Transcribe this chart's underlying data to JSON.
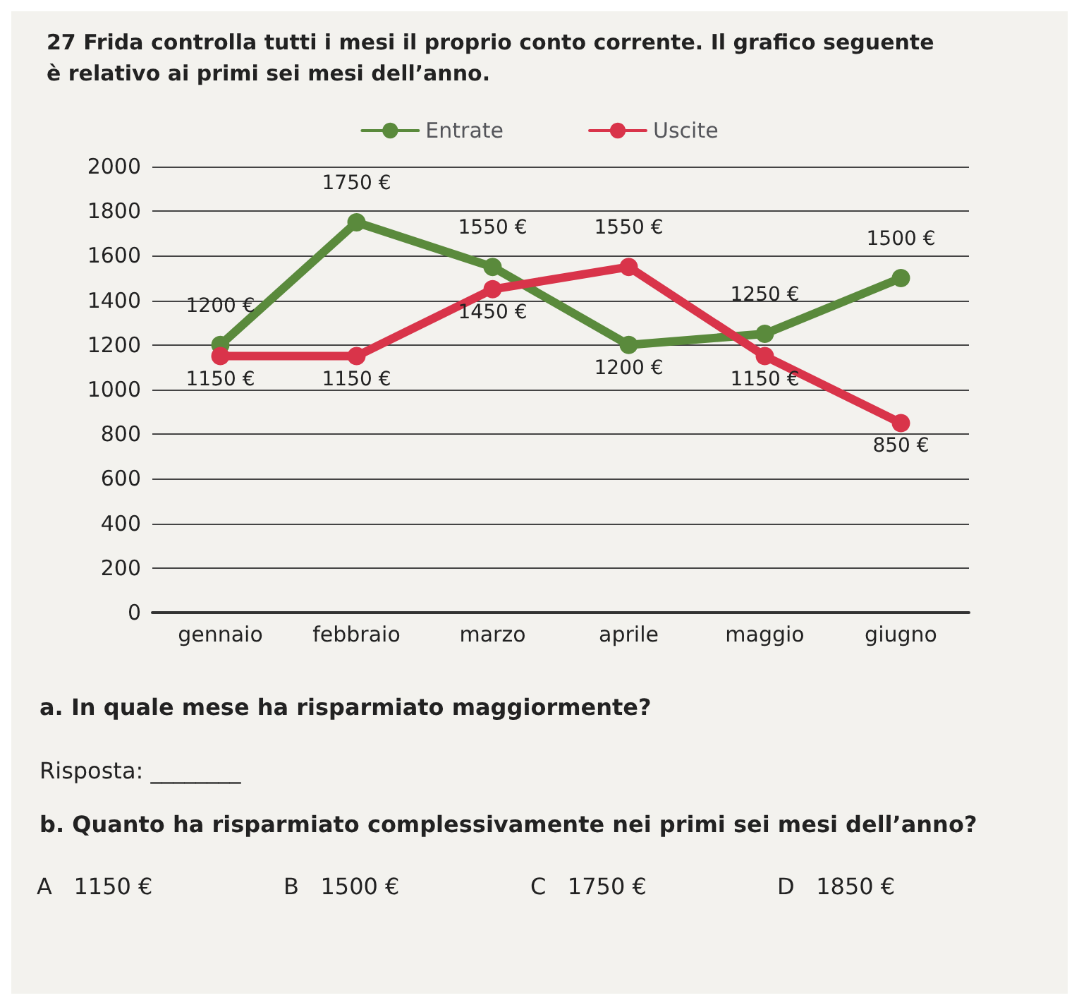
{
  "chart_data": {
    "type": "line",
    "title": "27 Frida controlla tutti i mesi il proprio conto corrente. Il grafico seguente è relativo ai primi sei mesi dell’anno.",
    "categories": [
      "gennaio",
      "febbraio",
      "marzo",
      "aprile",
      "maggio",
      "giugno"
    ],
    "series": [
      {
        "name": "Entrate",
        "color": "#5a8a3c",
        "values": [
          1200,
          1750,
          1550,
          1200,
          1250,
          1500
        ],
        "value_labels": [
          "1200 €",
          "1750 €",
          "1550 €",
          "1200 €",
          "1250 €",
          "1500 €"
        ]
      },
      {
        "name": "Uscite",
        "color": "#d9344a",
        "values": [
          1150,
          1150,
          1450,
          1550,
          1150,
          850
        ],
        "value_labels": [
          "1150 €",
          "1150 €",
          "1450 €",
          "1550 €",
          "1150 €",
          "850 €"
        ]
      }
    ],
    "ylim": [
      0,
      2000
    ],
    "yticks": [
      0,
      200,
      400,
      600,
      800,
      1000,
      1200,
      1400,
      1600,
      1800,
      2000
    ],
    "grid": "y",
    "legend": "top",
    "marker": "circle",
    "line_style": "solid",
    "annotations": [
      "a. In quale mese ha risparmiato maggiormente?",
      "Risposta: ________",
      "b. Quanto ha risparmiato complessivamente nei primi sei mesi dell’anno?",
      "A   1150 €",
      "B   1500 €",
      "C   1750 €",
      "D   1850 €"
    ]
  }
}
